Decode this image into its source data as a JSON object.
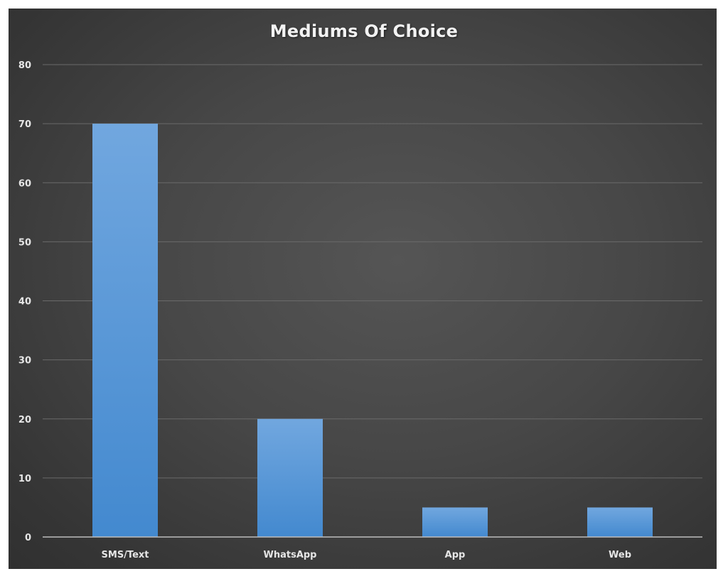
{
  "chart_data": {
    "type": "bar",
    "title": "Mediums Of Choice",
    "xlabel": "",
    "ylabel": "",
    "categories": [
      "SMS/Text",
      "WhatsApp",
      "App",
      "Web"
    ],
    "values": [
      70,
      20,
      5,
      5
    ],
    "ylim": [
      0,
      80
    ],
    "yticks": [
      "0",
      "10",
      "20",
      "30",
      "40",
      "50",
      "60",
      "70",
      "80"
    ],
    "grid": true,
    "legend": "none",
    "bar_color": "#5b9bd5"
  }
}
